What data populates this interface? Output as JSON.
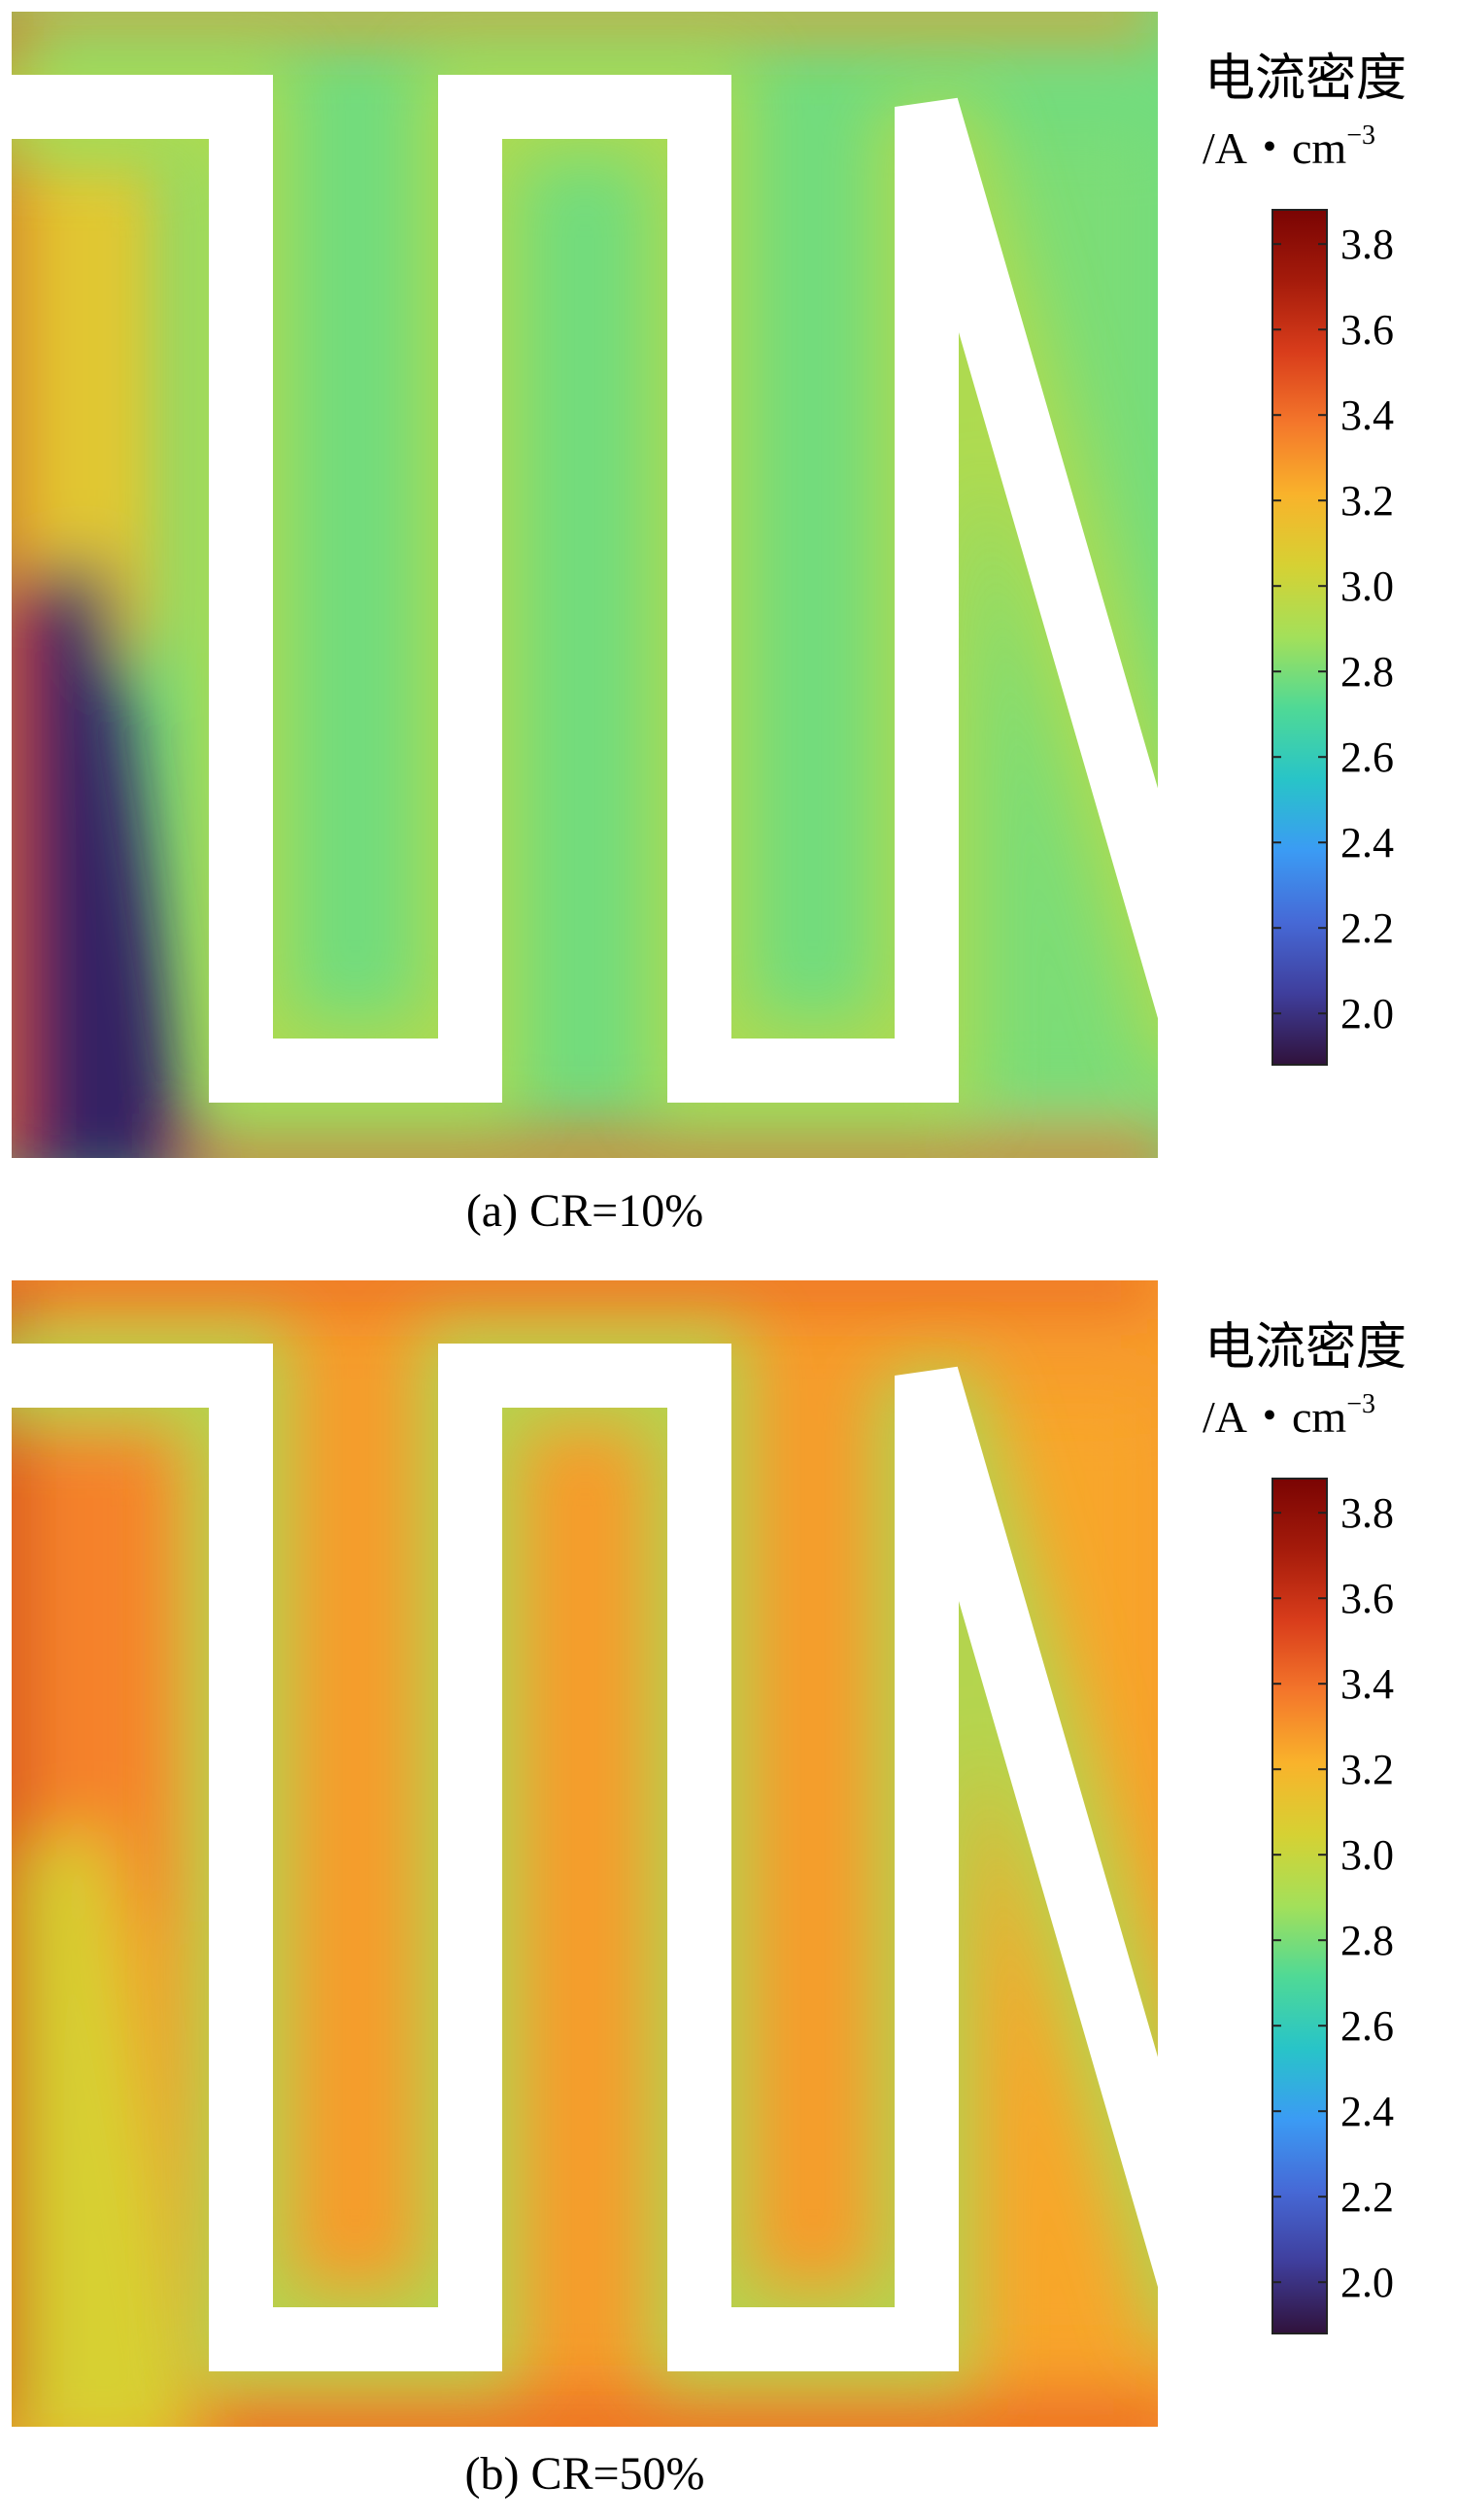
{
  "chart_data": [
    {
      "type": "heatmap",
      "panel": "a",
      "caption": "(a) CR=10%",
      "colorbar": {
        "title": "电流密度",
        "unit_prefix": "/A・cm",
        "unit_exponent": "−3",
        "ticks": [
          "3.8",
          "3.6",
          "3.4",
          "3.2",
          "3.0",
          "2.8",
          "2.6",
          "2.4",
          "2.2",
          "2.0"
        ],
        "range": [
          1.88,
          3.88
        ]
      },
      "field": {
        "base_value": 2.78,
        "min_value": 1.9,
        "max_value": 3.7,
        "serpentine_channel_edge_value": 2.95,
        "left_bottom_region_value": 1.95,
        "left_top_region_value": 3.1,
        "right_region_value": 2.8,
        "left_edge_value": 3.5,
        "bottom_edge_value": 3.4,
        "top_edge_value": 3.3
      }
    },
    {
      "type": "heatmap",
      "panel": "b",
      "caption": "(b) CR=50%",
      "colorbar": {
        "title": "电流密度",
        "unit_prefix": "/A・cm",
        "unit_exponent": "−3",
        "ticks": [
          "3.8",
          "3.6",
          "3.4",
          "3.2",
          "3.0",
          "2.8",
          "2.6",
          "2.4",
          "2.2",
          "2.0"
        ],
        "range": [
          1.88,
          3.88
        ]
      },
      "field": {
        "base_value": 3.28,
        "min_value": 2.6,
        "max_value": 3.75,
        "serpentine_channel_edge_value": 2.9,
        "left_bottom_region_value": 3.05,
        "left_top_region_value": 3.35,
        "right_region_value": 3.25,
        "left_edge_value": 3.6,
        "bottom_edge_value": 3.45,
        "top_edge_value": 3.45
      }
    }
  ],
  "colormap": [
    "#30123b",
    "#3f3e9c",
    "#4669d6",
    "#3b9bf4",
    "#28c4c8",
    "#4fd996",
    "#a3e05a",
    "#d6d133",
    "#f9b32b",
    "#f4772b",
    "#d93d1b",
    "#a51b0b",
    "#7a0403"
  ]
}
